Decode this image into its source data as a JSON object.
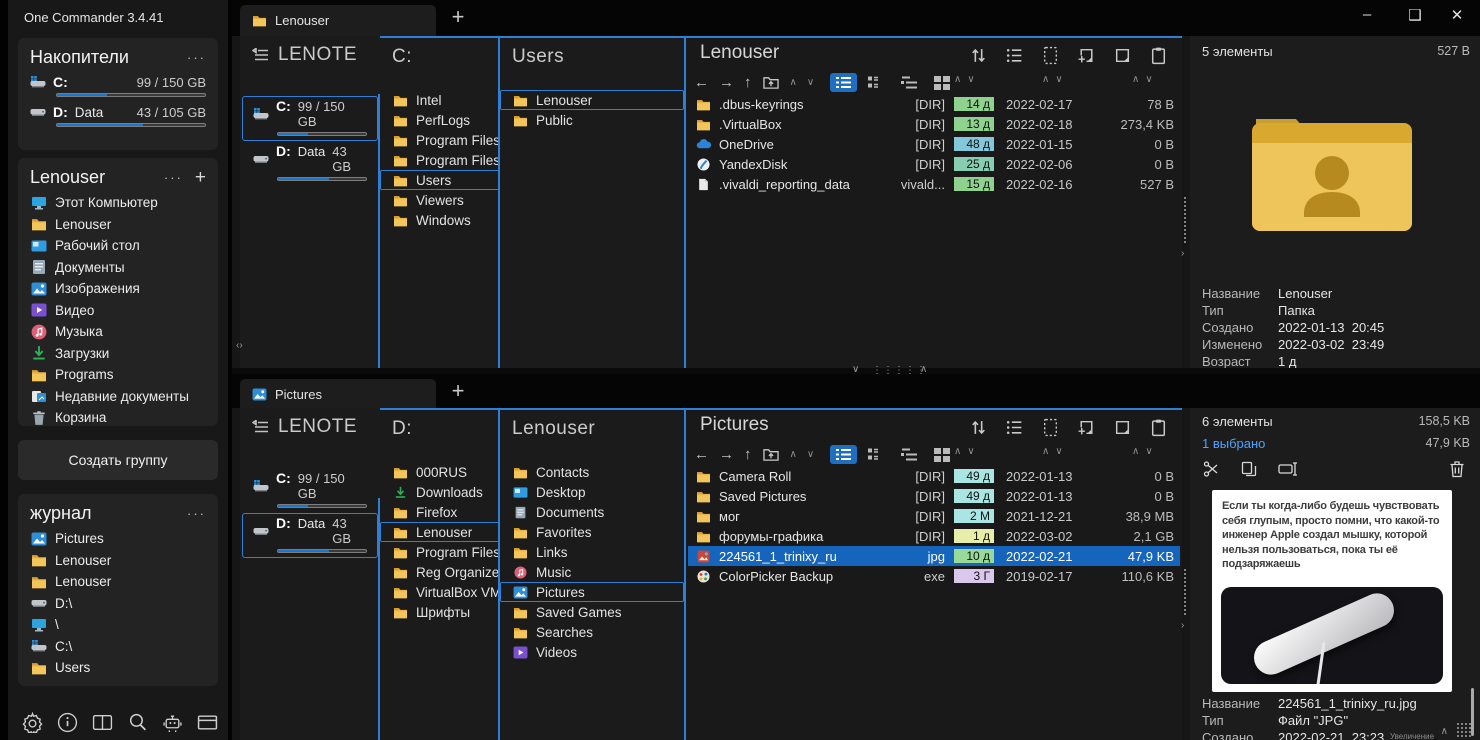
{
  "app": {
    "title": "One Commander 3.4.41"
  },
  "window_controls": {
    "minimize": "–",
    "maximize": "❑",
    "close": "✕"
  },
  "colors": {
    "accent": "#2f7fd6",
    "selection_row": "#1565bd",
    "progress": "#1876d2"
  },
  "sidebar": {
    "drives": {
      "title": "Накопители",
      "menu": "···",
      "items": [
        {
          "name": "C:",
          "sub": "",
          "usage": "99 / 150 GB",
          "percent": 34
        },
        {
          "name": "D:",
          "sub": "Data",
          "usage": "43 / 105 GB",
          "percent": 58
        }
      ]
    },
    "user": {
      "title": "Lenouser",
      "menu": "···",
      "add": "+",
      "items": [
        {
          "label": "Этот Компьютер"
        },
        {
          "label": "Lenouser"
        },
        {
          "label": "Рабочий стол"
        },
        {
          "label": "Документы"
        },
        {
          "label": "Изображения"
        },
        {
          "label": "Видео"
        },
        {
          "label": "Музыка"
        },
        {
          "label": "Загрузки"
        },
        {
          "label": "Programs"
        },
        {
          "label": "Недавние документы"
        },
        {
          "label": "Корзина"
        }
      ]
    },
    "create_group": "Создать группу",
    "journal": {
      "title": "журнал",
      "menu": "···",
      "items": [
        {
          "label": "Pictures"
        },
        {
          "label": "Lenouser"
        },
        {
          "label": "Lenouser"
        },
        {
          "label": "D:\\"
        },
        {
          "label": "\\"
        },
        {
          "label": "C:\\"
        },
        {
          "label": "Users"
        }
      ]
    }
  },
  "panes": {
    "top": {
      "tab": "Lenouser",
      "new_tab": "+",
      "col_drives": {
        "header": "LENOTE",
        "items": [
          {
            "name": "C:",
            "sub": "",
            "usage": "99 / 150 GB",
            "percent": 34
          },
          {
            "name": "D:",
            "sub": "Data",
            "usage": "43 GB",
            "percent": 58
          }
        ]
      },
      "col2": {
        "header": "C:",
        "items": [
          {
            "label": "Intel"
          },
          {
            "label": "PerfLogs"
          },
          {
            "label": "Program Files"
          },
          {
            "label": "Program Files (..."
          },
          {
            "label": "Users"
          },
          {
            "label": "Viewers"
          },
          {
            "label": "Windows"
          }
        ]
      },
      "col3": {
        "header": "Users",
        "items": [
          {
            "label": "Lenouser"
          },
          {
            "label": "Public"
          }
        ]
      },
      "files": {
        "title": "Lenouser",
        "rows": [
          {
            "name": ".dbus-keyrings",
            "type": "[DIR]",
            "age": "14 д",
            "age_bg": "#8ed28e",
            "date": "2022-02-17",
            "size": "78 B"
          },
          {
            "name": ".VirtualBox",
            "type": "[DIR]",
            "age": "13 д",
            "age_bg": "#8ed28e",
            "date": "2022-02-18",
            "size": "273,4 KB"
          },
          {
            "name": "OneDrive",
            "type": "[DIR]",
            "age": "48 д",
            "age_bg": "#83c7db",
            "date": "2022-01-15",
            "size": "0 B"
          },
          {
            "name": "YandexDisk",
            "type": "[DIR]",
            "age": "25 д",
            "age_bg": "#87cdb2",
            "date": "2022-02-06",
            "size": "0 B"
          },
          {
            "name": ".vivaldi_reporting_data",
            "type": "vivald...",
            "age": "15 д",
            "age_bg": "#8ed28e",
            "date": "2022-02-16",
            "size": "527 B"
          }
        ]
      },
      "preview": {
        "count": "5 элементы",
        "total": "527 B",
        "props": [
          {
            "label": "Название",
            "value": "Lenouser"
          },
          {
            "label": "Тип",
            "value": "Папка"
          },
          {
            "label": "Создано",
            "value": "2022-01-13  20:45"
          },
          {
            "label": "Изменено",
            "value": "2022-03-02  23:49"
          },
          {
            "label": "Возраст",
            "value": "1 д"
          }
        ]
      }
    },
    "bottom": {
      "tab": "Pictures",
      "new_tab": "+",
      "col_drives": {
        "header": "LENOTE",
        "items": [
          {
            "name": "C:",
            "sub": "",
            "usage": "99 / 150 GB",
            "percent": 34
          },
          {
            "name": "D:",
            "sub": "Data",
            "usage": "43 GB",
            "percent": 58
          }
        ]
      },
      "col2": {
        "header": "D:",
        "items": [
          {
            "label": "000RUS"
          },
          {
            "label": "Downloads"
          },
          {
            "label": "Firefox"
          },
          {
            "label": "Lenouser"
          },
          {
            "label": "Program Files"
          },
          {
            "label": "Reg Organizer..."
          },
          {
            "label": "VirtualBox VMs"
          },
          {
            "label": "Шрифты"
          }
        ]
      },
      "col3": {
        "header": "Lenouser",
        "items": [
          {
            "label": "Contacts"
          },
          {
            "label": "Desktop"
          },
          {
            "label": "Documents"
          },
          {
            "label": "Favorites"
          },
          {
            "label": "Links"
          },
          {
            "label": "Music"
          },
          {
            "label": "Pictures"
          },
          {
            "label": "Saved Games"
          },
          {
            "label": "Searches"
          },
          {
            "label": "Videos"
          }
        ]
      },
      "files": {
        "title": "Pictures",
        "rows": [
          {
            "name": "Camera Roll",
            "type": "[DIR]",
            "age": "49 д",
            "age_bg": "#a9e6e3",
            "date": "2022-01-13",
            "size": "0 B"
          },
          {
            "name": "Saved Pictures",
            "type": "[DIR]",
            "age": "49 д",
            "age_bg": "#a9e6e3",
            "date": "2022-01-13",
            "size": "0 B"
          },
          {
            "name": "мог",
            "type": "[DIR]",
            "age": "2 М",
            "age_bg": "#a9e6e3",
            "date": "2021-12-21",
            "size": "38,9 MB"
          },
          {
            "name": "форумы-графика",
            "type": "[DIR]",
            "age": "1 д",
            "age_bg": "#e9edaa",
            "date": "2022-03-02",
            "size": "2,1 GB"
          },
          {
            "name": "224561_1_trinixy_ru",
            "type": "jpg",
            "age": "10 д",
            "age_bg": "#98da98",
            "date": "2022-02-21",
            "size": "47,9 KB"
          },
          {
            "name": "ColorPicker Backup",
            "type": "exe",
            "age": "3 Г",
            "age_bg": "#d9c8ec",
            "date": "2019-02-17",
            "size": "110,6 KB"
          }
        ]
      },
      "preview": {
        "count": "6 элементы",
        "total": "158,5 KB",
        "selected_count": "1 выбрано",
        "selected_size": "47,9 KB",
        "image_caption": "Если ты когда-либо будешь чувствовать себя глупым, просто помни, что какой-то инженер Apple создал мышку, которой нельзя пользоваться, пока ты её подзаряжаешь",
        "props": [
          {
            "label": "Название",
            "value": "224561_1_trinixy_ru.jpg"
          },
          {
            "label": "Тип",
            "value": "Файл \"JPG\""
          },
          {
            "label": "Создано",
            "value": "2022-02-21  23:23"
          }
        ],
        "zoom_label": "Увеличение"
      }
    }
  }
}
